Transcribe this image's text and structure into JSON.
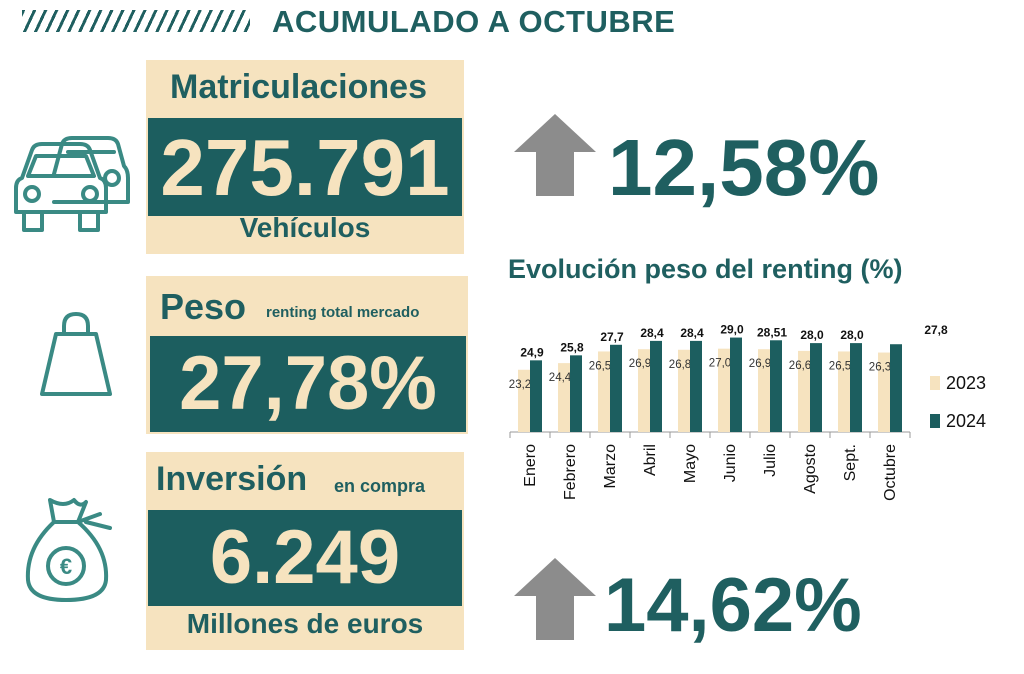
{
  "header": {
    "title": "ACUMULADO A OCTUBRE"
  },
  "matriculaciones": {
    "label": "Matriculaciones",
    "value": "275.791",
    "unit": "Vehículos",
    "change": "12,58%"
  },
  "peso": {
    "label": "Peso",
    "sublabel": "renting total mercado",
    "value": "27,78%"
  },
  "inversion": {
    "label": "Inversión",
    "sublabel": "en compra",
    "value": "6.249",
    "unit": "Millones de euros",
    "change": "14,62%"
  },
  "colors": {
    "teal": "#1c5e5f",
    "cream": "#f6e3bf",
    "arrow": "#8c8c8c"
  },
  "chart_data": {
    "type": "bar",
    "title": "Evolución peso del renting (%)",
    "categories": [
      "Enero",
      "Febrero",
      "Marzo",
      "Abril",
      "Mayo",
      "Junio",
      "Julio",
      "Agosto",
      "Sept.",
      "Octubre"
    ],
    "series": [
      {
        "name": "2023",
        "values": [
          23.2,
          24.4,
          26.5,
          26.9,
          26.8,
          27.0,
          26.9,
          26.6,
          26.5,
          26.3
        ],
        "labels": [
          "23,2",
          "24,4",
          "26,5",
          "26,9",
          "26,8",
          "27,0",
          "26,9",
          "26,6",
          "26,5",
          "26,3"
        ]
      },
      {
        "name": "2024",
        "values": [
          24.9,
          25.8,
          27.7,
          28.4,
          28.4,
          29.0,
          28.51,
          28.0,
          28.0,
          27.8
        ],
        "labels": [
          "24,9",
          "25,8",
          "27,7",
          "28,4",
          "28,4",
          "29,0",
          "28,51",
          "28,0",
          "28,0",
          "27,8"
        ]
      }
    ],
    "legend": [
      "2023",
      "2024"
    ],
    "legend_position": "right",
    "ylim": [
      0,
      30
    ]
  }
}
